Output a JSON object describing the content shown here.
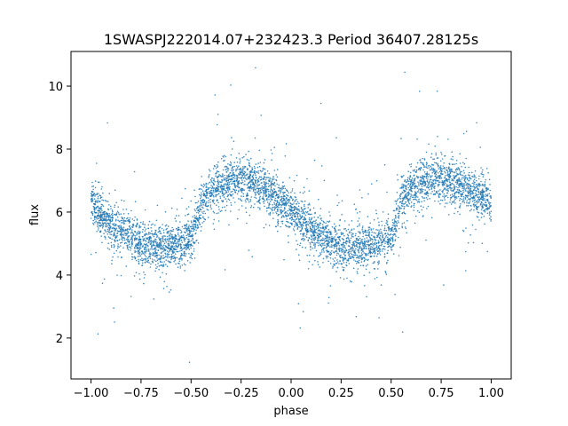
{
  "chart_data": {
    "type": "scatter",
    "title": "1SWASPJ222014.07+232423.3 Period 36407.28125s",
    "xlabel": "phase",
    "ylabel": "flux",
    "xlim": [
      -1.1,
      1.1
    ],
    "ylim": [
      0.7,
      11.1
    ],
    "x_ticks": [
      -1.0,
      -0.75,
      -0.5,
      -0.25,
      0.0,
      0.25,
      0.5,
      0.75,
      1.0
    ],
    "x_tick_labels": [
      "−1.00",
      "−0.75",
      "−0.50",
      "−0.25",
      "0.00",
      "0.25",
      "0.50",
      "0.75",
      "1.00"
    ],
    "y_ticks": [
      2,
      4,
      6,
      8,
      10
    ],
    "y_tick_labels": [
      "2",
      "4",
      "6",
      "8",
      "10"
    ],
    "grid": false,
    "point_color": "#1f77b4",
    "series": [
      {
        "description_of_trend": "folded light curve, phase -1 to 1, two cycles",
        "x": [
          -1.0,
          -0.95,
          -0.9,
          -0.85,
          -0.8,
          -0.75,
          -0.7,
          -0.65,
          -0.6,
          -0.55,
          -0.5,
          -0.45,
          -0.4,
          -0.35,
          -0.3,
          -0.25,
          -0.2,
          -0.15,
          -0.1,
          -0.05,
          0.0,
          0.05,
          0.1,
          0.15,
          0.2,
          0.25,
          0.3,
          0.35,
          0.4,
          0.45,
          0.5,
          0.55,
          0.6,
          0.65,
          0.7,
          0.75,
          0.8,
          0.85,
          0.9,
          0.95,
          1.0
        ],
        "y": [
          6.3,
          5.9,
          5.6,
          5.4,
          5.2,
          5.0,
          4.95,
          4.9,
          4.95,
          5.0,
          5.1,
          6.2,
          6.7,
          6.9,
          7.0,
          7.0,
          6.95,
          6.85,
          6.6,
          6.3,
          6.0,
          5.7,
          5.4,
          5.2,
          5.0,
          4.95,
          4.9,
          4.9,
          4.95,
          5.0,
          5.1,
          6.3,
          6.7,
          6.9,
          7.0,
          7.0,
          6.95,
          6.85,
          6.7,
          6.5,
          6.3
        ]
      }
    ]
  }
}
